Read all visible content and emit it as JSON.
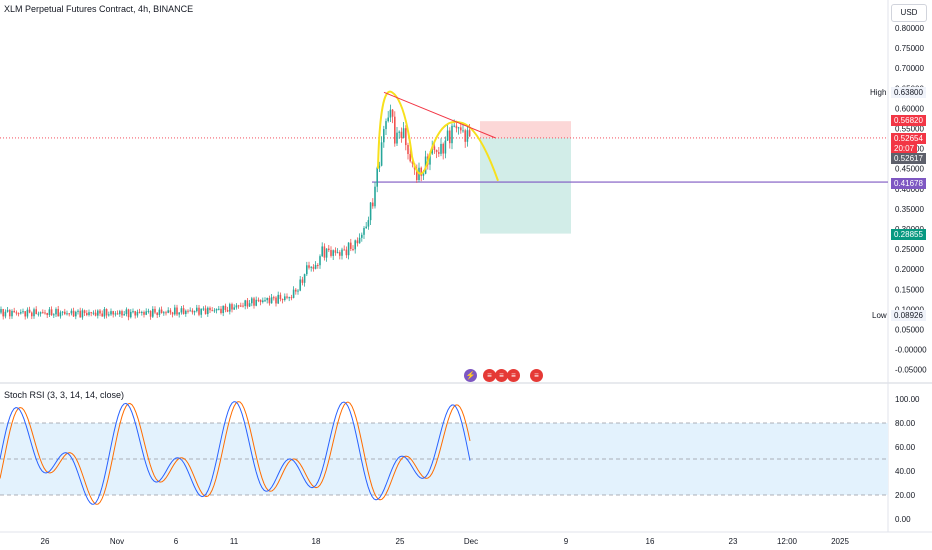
{
  "header": {
    "title": "XLM Perpetual Futures Contract, 4h, BINANCE",
    "currency_button": "USD"
  },
  "price_axis": {
    "ticks": [
      "0.80000",
      "0.75000",
      "0.70000",
      "0.65000",
      "0.60000",
      "0.55000",
      "0.50000",
      "0.45000",
      "0.40000",
      "0.35000",
      "0.30000",
      "0.25000",
      "0.20000",
      "0.15000",
      "0.10000",
      "0.05000",
      "-0.00000",
      "-0.05000"
    ],
    "tick_values": [
      0.8,
      0.75,
      0.7,
      0.65,
      0.6,
      0.55,
      0.5,
      0.45,
      0.4,
      0.35,
      0.3,
      0.25,
      0.2,
      0.15,
      0.1,
      0.05,
      0.0,
      -0.05
    ]
  },
  "badges": {
    "high_label": "High",
    "high_value": "0.63800",
    "target_value": "0.56820",
    "last_price": "0.52654",
    "countdown": "20:07",
    "prev_close": "0.52617",
    "support_value": "0.41678",
    "stop_value": "0.28855",
    "low_label": "Low",
    "low_value": "0.08926"
  },
  "colors": {
    "up": "#26a69a",
    "down": "#ef5350",
    "support_line": "#7e57c2",
    "pattern": "#f7e01d",
    "trendline": "#f23645",
    "stop_zone": "#fcd7d7",
    "target_zone": "#d2ede8",
    "rsi_k": "#2962ff",
    "rsi_d": "#ff6d00",
    "rsi_band": "#e3f2fd"
  },
  "rsi": {
    "title": "Stoch RSI (3, 3, 14, 14, close)",
    "ticks": [
      "100.00",
      "80.00",
      "60.00",
      "40.00",
      "20.00",
      "0.00"
    ],
    "tick_values": [
      100,
      80,
      60,
      40,
      20,
      0
    ]
  },
  "time_axis": {
    "labels": [
      "26",
      "Nov",
      "6",
      "11",
      "18",
      "25",
      "Dec",
      "9",
      "16",
      "23",
      "12:00",
      "2025"
    ]
  },
  "event_icons": [
    "lightning-icon",
    "us-flag-icon",
    "us-flag-icon",
    "us-flag-icon",
    "us-flag-icon"
  ],
  "chart_data": {
    "type": "candlestick",
    "title": "XLM Perpetual Futures Contract, 4h, BINANCE",
    "price_range": [
      -0.05,
      0.8
    ],
    "annotations": {
      "high": 0.638,
      "low": 0.08926,
      "support": 0.41678,
      "target": 0.5682,
      "stop": 0.28855,
      "last_price": 0.52654,
      "prev_close": 0.52617
    },
    "approx_close_path": [
      {
        "date": "Oct 23",
        "close": 0.092
      },
      {
        "date": "Oct 30",
        "close": 0.091
      },
      {
        "date": "Nov 6",
        "close": 0.096
      },
      {
        "date": "Nov 11",
        "close": 0.11
      },
      {
        "date": "Nov 15",
        "close": 0.13
      },
      {
        "date": "Nov 17",
        "close": 0.2
      },
      {
        "date": "Nov 20",
        "close": 0.245
      },
      {
        "date": "Nov 22",
        "close": 0.3
      },
      {
        "date": "Nov 23",
        "close": 0.44
      },
      {
        "date": "Nov 24",
        "close": 0.6
      },
      {
        "date": "Nov 25",
        "close": 0.5
      },
      {
        "date": "Nov 27",
        "close": 0.43
      },
      {
        "date": "Nov 29",
        "close": 0.52
      },
      {
        "date": "Nov 30",
        "close": 0.56
      },
      {
        "date": "Dec 1",
        "close": 0.5265
      }
    ],
    "stoch_rsi_range": [
      0,
      100
    ]
  }
}
